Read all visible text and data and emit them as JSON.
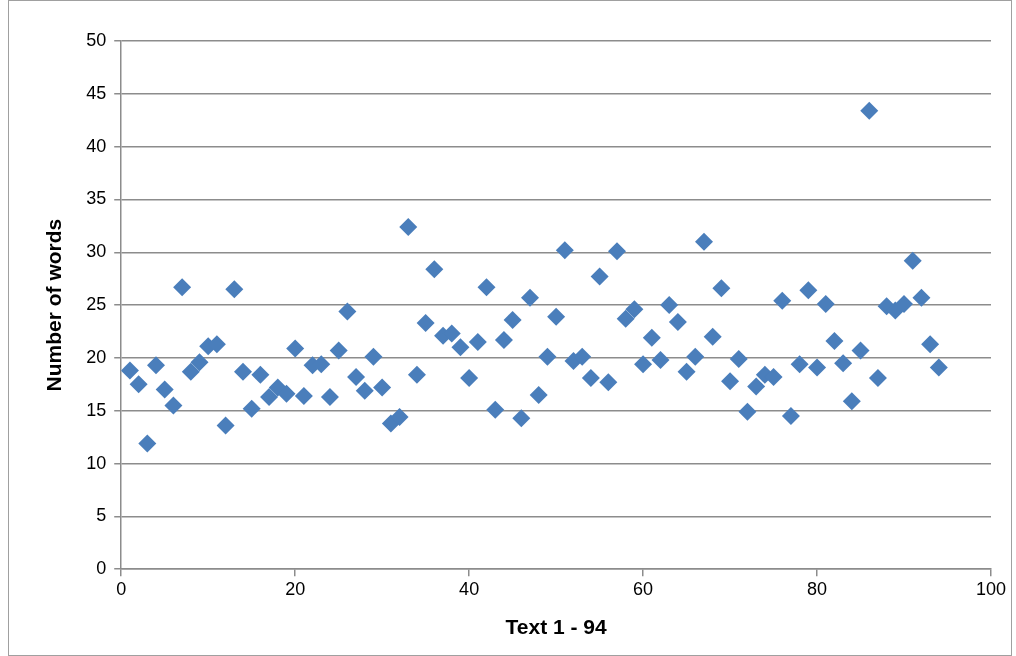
{
  "chart_data": {
    "type": "scatter",
    "xlabel": "Text 1 - 94",
    "ylabel": "Number of words",
    "x": [
      1,
      2,
      3,
      4,
      5,
      6,
      7,
      8,
      9,
      10,
      11,
      12,
      13,
      14,
      15,
      16,
      17,
      18,
      19,
      20,
      21,
      22,
      23,
      24,
      25,
      26,
      27,
      28,
      29,
      30,
      31,
      32,
      33,
      34,
      35,
      36,
      37,
      38,
      39,
      40,
      41,
      42,
      43,
      44,
      45,
      46,
      47,
      48,
      49,
      50,
      51,
      52,
      53,
      54,
      55,
      56,
      57,
      58,
      59,
      60,
      61,
      62,
      63,
      64,
      65,
      66,
      67,
      68,
      69,
      70,
      71,
      72,
      73,
      74,
      75,
      76,
      77,
      78,
      79,
      80,
      81,
      82,
      83,
      84,
      85,
      86,
      87,
      88,
      89,
      90,
      91,
      92,
      93,
      94
    ],
    "series": [
      {
        "color": "#4a7ebb",
        "values": [
          18.8,
          17.5,
          11.9,
          19.3,
          17.0,
          15.5,
          26.7,
          18.7,
          19.6,
          21.1,
          21.3,
          13.6,
          26.5,
          18.7,
          15.2,
          18.4,
          16.3,
          17.2,
          16.6,
          20.9,
          16.4,
          19.3,
          19.4,
          16.3,
          20.7,
          24.4,
          18.2,
          16.9,
          20.1,
          17.2,
          13.8,
          14.4,
          32.4,
          18.4,
          23.3,
          28.4,
          22.1,
          22.3,
          21.0,
          18.1,
          21.5,
          26.7,
          15.1,
          21.7,
          23.6,
          14.3,
          25.7,
          16.5,
          20.1,
          23.9,
          30.2,
          19.7,
          20.1,
          18.1,
          27.7,
          17.7,
          30.1,
          23.7,
          24.6,
          19.4,
          21.9,
          19.8,
          25.0,
          23.4,
          18.7,
          20.1,
          31.0,
          22.0,
          26.6,
          17.8,
          19.9,
          14.9,
          17.3,
          18.4,
          18.2,
          25.4,
          14.5,
          19.4,
          26.4,
          19.1,
          25.1,
          21.6,
          19.5,
          15.9,
          20.7,
          43.4,
          18.1,
          24.9,
          24.5,
          25.1,
          29.2,
          25.7,
          21.3,
          19.1
        ]
      }
    ],
    "xlim": [
      0,
      100
    ],
    "xticks": [
      0,
      20,
      40,
      60,
      80,
      100
    ],
    "ylim": [
      0,
      50
    ],
    "yticks": [
      0,
      5,
      10,
      15,
      20,
      25,
      30,
      35,
      40,
      45,
      50
    ],
    "grid": "y",
    "marker": "diamond",
    "legend": false
  }
}
